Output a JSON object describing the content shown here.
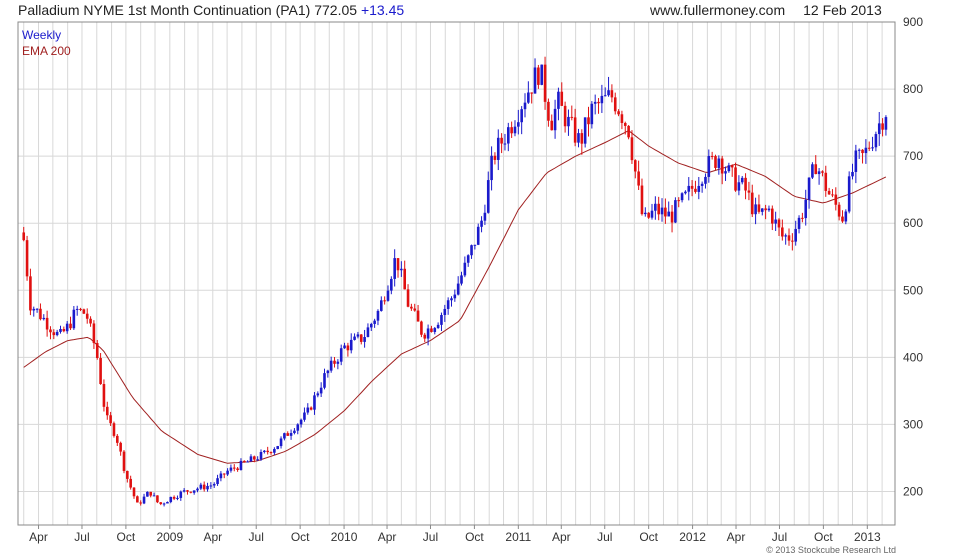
{
  "header": {
    "title": "Palladium NYME 1st Month Continuation (PA1)",
    "price": "772.05",
    "change": "+13.45",
    "source": "www.fullermoney.com",
    "date": "12 Feb 2013"
  },
  "copyright": "© 2013 Stockcube Research Ltd",
  "chart_data": {
    "type": "candlestick",
    "frequency": "weekly",
    "ylim": [
      150,
      900
    ],
    "y_ticks": [
      200,
      300,
      400,
      500,
      600,
      700,
      800,
      900
    ],
    "x_ticks": [
      {
        "label": "Apr",
        "date": "2008-04"
      },
      {
        "label": "Jul",
        "date": "2008-07"
      },
      {
        "label": "Oct",
        "date": "2008-10"
      },
      {
        "label": "2009",
        "date": "2009-01"
      },
      {
        "label": "Apr",
        "date": "2009-04"
      },
      {
        "label": "Jul",
        "date": "2009-07"
      },
      {
        "label": "Oct",
        "date": "2009-10"
      },
      {
        "label": "2010",
        "date": "2010-01"
      },
      {
        "label": "Apr",
        "date": "2010-04"
      },
      {
        "label": "Jul",
        "date": "2010-07"
      },
      {
        "label": "Oct",
        "date": "2010-10"
      },
      {
        "label": "2011",
        "date": "2011-01"
      },
      {
        "label": "Apr",
        "date": "2011-04"
      },
      {
        "label": "Jul",
        "date": "2011-07"
      },
      {
        "label": "Oct",
        "date": "2011-10"
      },
      {
        "label": "2012",
        "date": "2012-01"
      },
      {
        "label": "Apr",
        "date": "2012-04"
      },
      {
        "label": "Jul",
        "date": "2012-07"
      },
      {
        "label": "Oct",
        "date": "2012-10"
      },
      {
        "label": "2013",
        "date": "2013-01"
      }
    ],
    "grid": true,
    "legend": [
      "Weekly",
      "EMA 200"
    ],
    "colors": {
      "up": "#1a1acc",
      "down": "#e01010",
      "ema": "#a02020",
      "grid": "#d8d8d8",
      "frame": "#888888"
    },
    "price_anchors": [
      [
        "2008-03-01",
        575
      ],
      [
        "2008-03-15",
        480
      ],
      [
        "2008-04-15",
        455
      ],
      [
        "2008-05-15",
        430
      ],
      [
        "2008-06-01",
        445
      ],
      [
        "2008-06-20",
        470
      ],
      [
        "2008-07-10",
        465
      ],
      [
        "2008-08-01",
        405
      ],
      [
        "2008-08-20",
        310
      ],
      [
        "2008-09-10",
        285
      ],
      [
        "2008-10-01",
        225
      ],
      [
        "2008-10-25",
        180
      ],
      [
        "2008-11-20",
        200
      ],
      [
        "2008-12-10",
        180
      ],
      [
        "2009-01-01",
        190
      ],
      [
        "2009-02-01",
        200
      ],
      [
        "2009-03-01",
        205
      ],
      [
        "2009-04-01",
        210
      ],
      [
        "2009-05-01",
        230
      ],
      [
        "2009-06-15",
        245
      ],
      [
        "2009-07-15",
        255
      ],
      [
        "2009-08-15",
        270
      ],
      [
        "2009-09-15",
        295
      ],
      [
        "2009-10-15",
        315
      ],
      [
        "2009-11-20",
        370
      ],
      [
        "2010-01-01",
        415
      ],
      [
        "2010-02-10",
        430
      ],
      [
        "2010-03-15",
        470
      ],
      [
        "2010-04-20",
        550
      ],
      [
        "2010-05-15",
        480
      ],
      [
        "2010-06-01",
        455
      ],
      [
        "2010-06-15",
        435
      ],
      [
        "2010-07-15",
        455
      ],
      [
        "2010-08-15",
        490
      ],
      [
        "2010-09-15",
        540
      ],
      [
        "2010-10-15",
        600
      ],
      [
        "2010-11-10",
        700
      ],
      [
        "2010-12-15",
        745
      ],
      [
        "2011-01-15",
        790
      ],
      [
        "2011-02-15",
        830
      ],
      [
        "2011-03-10",
        750
      ],
      [
        "2011-03-25",
        780
      ],
      [
        "2011-04-15",
        750
      ],
      [
        "2011-05-10",
        720
      ],
      [
        "2011-06-05",
        770
      ],
      [
        "2011-06-25",
        780
      ],
      [
        "2011-07-15",
        790
      ],
      [
        "2011-08-01",
        770
      ],
      [
        "2011-08-20",
        740
      ],
      [
        "2011-09-20",
        600
      ],
      [
        "2011-10-15",
        620
      ],
      [
        "2011-11-15",
        610
      ],
      [
        "2011-12-20",
        640
      ],
      [
        "2012-01-25",
        680
      ],
      [
        "2012-02-25",
        700
      ],
      [
        "2012-03-20",
        670
      ],
      [
        "2012-04-20",
        650
      ],
      [
        "2012-05-15",
        610
      ],
      [
        "2012-06-10",
        620
      ],
      [
        "2012-07-05",
        580
      ],
      [
        "2012-07-25",
        580
      ],
      [
        "2012-08-15",
        610
      ],
      [
        "2012-09-15",
        690
      ],
      [
        "2012-10-15",
        640
      ],
      [
        "2012-11-10",
        610
      ],
      [
        "2012-12-05",
        690
      ],
      [
        "2012-12-25",
        700
      ],
      [
        "2013-01-20",
        740
      ],
      [
        "2013-02-12",
        772
      ]
    ],
    "ema_anchors": [
      [
        "2008-03-01",
        385
      ],
      [
        "2008-04-15",
        408
      ],
      [
        "2008-06-01",
        425
      ],
      [
        "2008-07-15",
        430
      ],
      [
        "2008-08-15",
        410
      ],
      [
        "2008-10-15",
        340
      ],
      [
        "2008-12-15",
        290
      ],
      [
        "2009-03-01",
        255
      ],
      [
        "2009-05-01",
        242
      ],
      [
        "2009-07-01",
        245
      ],
      [
        "2009-09-01",
        260
      ],
      [
        "2009-11-01",
        285
      ],
      [
        "2010-01-01",
        320
      ],
      [
        "2010-03-01",
        365
      ],
      [
        "2010-05-01",
        405
      ],
      [
        "2010-07-01",
        425
      ],
      [
        "2010-09-01",
        455
      ],
      [
        "2010-11-01",
        535
      ],
      [
        "2011-01-01",
        620
      ],
      [
        "2011-03-01",
        675
      ],
      [
        "2011-05-01",
        700
      ],
      [
        "2011-07-01",
        720
      ],
      [
        "2011-08-20",
        738
      ],
      [
        "2011-10-01",
        715
      ],
      [
        "2011-12-01",
        690
      ],
      [
        "2012-02-01",
        675
      ],
      [
        "2012-04-01",
        688
      ],
      [
        "2012-06-01",
        670
      ],
      [
        "2012-08-01",
        640
      ],
      [
        "2012-10-01",
        630
      ],
      [
        "2012-12-01",
        645
      ],
      [
        "2013-02-12",
        670
      ]
    ]
  }
}
